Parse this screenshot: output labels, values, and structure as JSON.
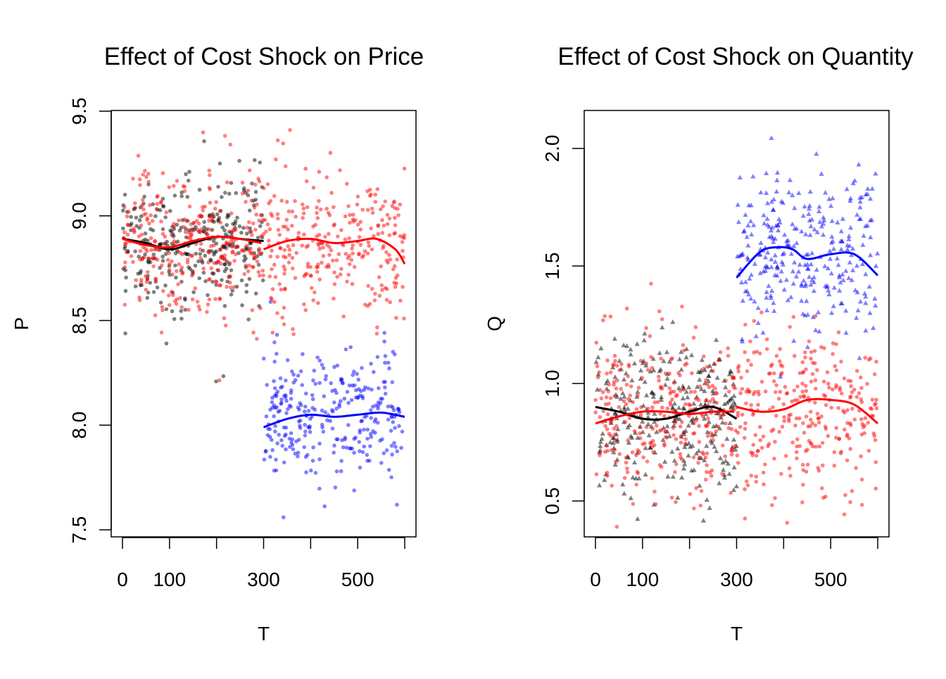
{
  "chart_data": [
    {
      "type": "scatter",
      "title": "Effect of Cost Shock on Price",
      "xlabel": "T",
      "ylabel": "P",
      "xlim": [
        0,
        600
      ],
      "ylim": [
        7.5,
        9.5
      ],
      "x_ticks": [
        0,
        100,
        200,
        300,
        400,
        500,
        600
      ],
      "x_tick_labels": [
        "0",
        "100",
        "300",
        "500"
      ],
      "x_tick_label_values": [
        0,
        100,
        300,
        500
      ],
      "y_ticks": [
        7.5,
        8.0,
        8.5,
        9.0,
        9.5
      ],
      "y_tick_labels": [
        "7.5",
        "8.0",
        "8.5",
        "9.0",
        "9.5"
      ],
      "grid": false,
      "point_series": [
        {
          "name": "black",
          "color": "#000000",
          "shape": "circle",
          "x_range": [
            0,
            300
          ],
          "n": 300,
          "mean": 8.88,
          "sd": 0.16
        },
        {
          "name": "red",
          "color": "#ff0000",
          "shape": "circle",
          "x_range": [
            0,
            600
          ],
          "n": 600,
          "mean": 8.87,
          "sd": 0.17
        },
        {
          "name": "blue",
          "color": "#0000ff",
          "shape": "circle",
          "x_range": [
            300,
            600
          ],
          "n": 300,
          "mean": 8.04,
          "sd": 0.16
        }
      ],
      "smooth_lines": [
        {
          "name": "black-smooth",
          "color": "#000000",
          "x": [
            0,
            50,
            100,
            150,
            200,
            250,
            300
          ],
          "y": [
            8.89,
            8.87,
            8.84,
            8.87,
            8.9,
            8.89,
            8.88
          ]
        },
        {
          "name": "red-smooth-pre",
          "color": "#ff0000",
          "x": [
            0,
            50,
            100,
            150,
            200,
            250,
            295
          ],
          "y": [
            8.89,
            8.86,
            8.85,
            8.88,
            8.9,
            8.89,
            8.87
          ]
        },
        {
          "name": "red-smooth-post",
          "color": "#ff0000",
          "x": [
            300,
            350,
            400,
            450,
            500,
            540,
            580,
            600
          ],
          "y": [
            8.84,
            8.88,
            8.89,
            8.87,
            8.88,
            8.89,
            8.84,
            8.77
          ]
        },
        {
          "name": "blue-smooth",
          "color": "#0000ff",
          "x": [
            300,
            350,
            400,
            450,
            500,
            550,
            600
          ],
          "y": [
            7.99,
            8.03,
            8.05,
            8.04,
            8.05,
            8.06,
            8.04
          ]
        }
      ]
    },
    {
      "type": "scatter",
      "title": "Effect of Cost Shock on Quantity",
      "xlabel": "T",
      "ylabel": "Q",
      "xlim": [
        0,
        600
      ],
      "ylim": [
        0.35,
        2.15
      ],
      "x_ticks": [
        0,
        100,
        200,
        300,
        400,
        500,
        600
      ],
      "x_tick_labels": [
        "0",
        "100",
        "300",
        "500"
      ],
      "x_tick_label_values": [
        0,
        100,
        300,
        500
      ],
      "y_ticks": [
        0.5,
        1.0,
        1.5,
        2.0
      ],
      "y_tick_labels": [
        "0.5",
        "1.0",
        "1.5",
        "2.0"
      ],
      "grid": false,
      "point_series": [
        {
          "name": "black",
          "color": "#000000",
          "shape": "triangle",
          "x_range": [
            0,
            300
          ],
          "n": 300,
          "mean": 0.87,
          "sd": 0.17
        },
        {
          "name": "red",
          "color": "#ff0000",
          "shape": "circle",
          "x_range": [
            0,
            600
          ],
          "n": 600,
          "mean": 0.88,
          "sd": 0.17
        },
        {
          "name": "blue",
          "color": "#0000ff",
          "shape": "triangle",
          "x_range": [
            300,
            600
          ],
          "n": 300,
          "mean": 1.55,
          "sd": 0.18
        }
      ],
      "smooth_lines": [
        {
          "name": "black-smooth",
          "color": "#000000",
          "x": [
            0,
            50,
            100,
            150,
            200,
            250,
            300
          ],
          "y": [
            0.9,
            0.88,
            0.85,
            0.85,
            0.88,
            0.9,
            0.85
          ]
        },
        {
          "name": "red-smooth-pre",
          "color": "#ff0000",
          "x": [
            0,
            50,
            100,
            150,
            200,
            250,
            295
          ],
          "y": [
            0.83,
            0.86,
            0.88,
            0.88,
            0.87,
            0.88,
            0.88
          ]
        },
        {
          "name": "red-smooth-post",
          "color": "#ff0000",
          "x": [
            300,
            350,
            400,
            450,
            500,
            550,
            600
          ],
          "y": [
            0.9,
            0.88,
            0.89,
            0.93,
            0.93,
            0.91,
            0.83
          ]
        },
        {
          "name": "blue-smooth",
          "color": "#0000ff",
          "x": [
            300,
            350,
            390,
            420,
            450,
            500,
            550,
            600
          ],
          "y": [
            1.45,
            1.56,
            1.58,
            1.57,
            1.53,
            1.55,
            1.55,
            1.46
          ]
        }
      ]
    }
  ]
}
